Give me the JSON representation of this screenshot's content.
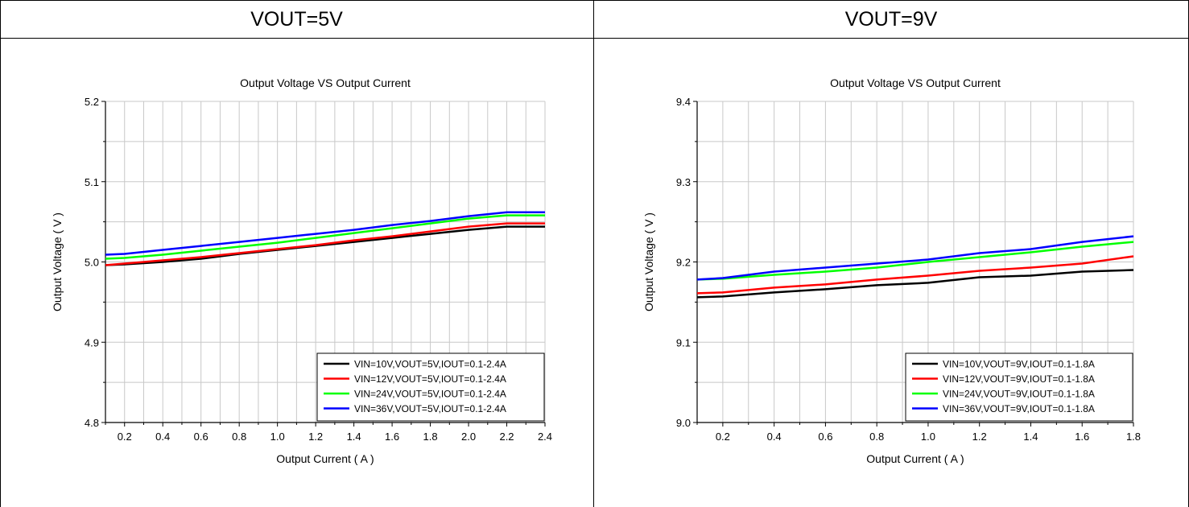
{
  "panels": [
    {
      "header": "VOUT=5V"
    },
    {
      "header": "VOUT=9V"
    }
  ],
  "chart_data": [
    {
      "type": "line",
      "title": "Output Voltage VS Output Current",
      "xlabel": "Output Current ( A )",
      "ylabel": "Output Voltage ( V )",
      "xlim": [
        0.1,
        2.4
      ],
      "ylim": [
        4.8,
        5.2
      ],
      "xticks": [
        "0.2",
        "0.4",
        "0.6",
        "0.8",
        "1.0",
        "1.2",
        "1.4",
        "1.6",
        "1.8",
        "2.0",
        "2.2",
        "2.4"
      ],
      "yticks": [
        "4.8",
        "4.9",
        "5.0",
        "5.1",
        "5.2"
      ],
      "grid": true,
      "legend_position": "bottom-right",
      "series": [
        {
          "name": "VIN=10V,VOUT=5V,IOUT=0.1-2.4A",
          "color": "#000000",
          "x": [
            0.1,
            0.2,
            0.4,
            0.6,
            0.8,
            1.0,
            1.2,
            1.4,
            1.6,
            1.8,
            2.0,
            2.2,
            2.4
          ],
          "y": [
            4.996,
            4.997,
            5.0,
            5.004,
            5.01,
            5.015,
            5.02,
            5.025,
            5.03,
            5.035,
            5.04,
            5.044,
            5.044
          ]
        },
        {
          "name": "VIN=12V,VOUT=5V,IOUT=0.1-2.4A",
          "color": "#ff0000",
          "x": [
            0.1,
            0.2,
            0.4,
            0.6,
            0.8,
            1.0,
            1.2,
            1.4,
            1.6,
            1.8,
            2.0,
            2.2,
            2.4
          ],
          "y": [
            4.996,
            4.998,
            5.002,
            5.006,
            5.011,
            5.016,
            5.021,
            5.027,
            5.032,
            5.038,
            5.044,
            5.048,
            5.048
          ]
        },
        {
          "name": "VIN=24V,VOUT=5V,IOUT=0.1-2.4A",
          "color": "#00ff00",
          "x": [
            0.1,
            0.2,
            0.4,
            0.6,
            0.8,
            1.0,
            1.2,
            1.4,
            1.6,
            1.8,
            2.0,
            2.2,
            2.4
          ],
          "y": [
            5.004,
            5.005,
            5.009,
            5.014,
            5.019,
            5.024,
            5.03,
            5.036,
            5.042,
            5.048,
            5.054,
            5.058,
            5.058
          ]
        },
        {
          "name": "VIN=36V,VOUT=5V,IOUT=0.1-2.4A",
          "color": "#0000ff",
          "x": [
            0.1,
            0.2,
            0.4,
            0.6,
            0.8,
            1.0,
            1.2,
            1.4,
            1.6,
            1.8,
            2.0,
            2.2,
            2.4
          ],
          "y": [
            5.009,
            5.01,
            5.015,
            5.02,
            5.025,
            5.03,
            5.035,
            5.04,
            5.046,
            5.051,
            5.057,
            5.062,
            5.062
          ]
        }
      ]
    },
    {
      "type": "line",
      "title": "Output Voltage VS Output Current",
      "xlabel": "Output Current ( A )",
      "ylabel": "Output Voltage ( V )",
      "xlim": [
        0.1,
        1.8
      ],
      "ylim": [
        9.0,
        9.4
      ],
      "xticks": [
        "0.2",
        "0.4",
        "0.6",
        "0.8",
        "1.0",
        "1.2",
        "1.4",
        "1.6",
        "1.8"
      ],
      "yticks": [
        "9.0",
        "9.1",
        "9.2",
        "9.3",
        "9.4"
      ],
      "grid": true,
      "legend_position": "bottom-right",
      "series": [
        {
          "name": "VIN=10V,VOUT=9V,IOUT=0.1-1.8A",
          "color": "#000000",
          "x": [
            0.1,
            0.2,
            0.4,
            0.6,
            0.8,
            1.0,
            1.2,
            1.4,
            1.6,
            1.8
          ],
          "y": [
            9.156,
            9.157,
            9.162,
            9.166,
            9.171,
            9.174,
            9.181,
            9.183,
            9.188,
            9.19
          ]
        },
        {
          "name": "VIN=12V,VOUT=9V,IOUT=0.1-1.8A",
          "color": "#ff0000",
          "x": [
            0.1,
            0.2,
            0.4,
            0.6,
            0.8,
            1.0,
            1.2,
            1.4,
            1.6,
            1.8
          ],
          "y": [
            9.161,
            9.162,
            9.168,
            9.172,
            9.178,
            9.183,
            9.189,
            9.193,
            9.198,
            9.207
          ]
        },
        {
          "name": "VIN=24V,VOUT=9V,IOUT=0.1-1.8A",
          "color": "#00ff00",
          "x": [
            0.1,
            0.2,
            0.4,
            0.6,
            0.8,
            1.0,
            1.2,
            1.4,
            1.6,
            1.8
          ],
          "y": [
            9.178,
            9.179,
            9.184,
            9.188,
            9.193,
            9.2,
            9.206,
            9.212,
            9.219,
            9.225
          ]
        },
        {
          "name": "VIN=36V,VOUT=9V,IOUT=0.1-1.8A",
          "color": "#0000ff",
          "x": [
            0.1,
            0.2,
            0.4,
            0.6,
            0.8,
            1.0,
            1.2,
            1.4,
            1.6,
            1.8
          ],
          "y": [
            9.178,
            9.18,
            9.188,
            9.193,
            9.198,
            9.203,
            9.211,
            9.216,
            9.225,
            9.232
          ]
        }
      ]
    }
  ]
}
